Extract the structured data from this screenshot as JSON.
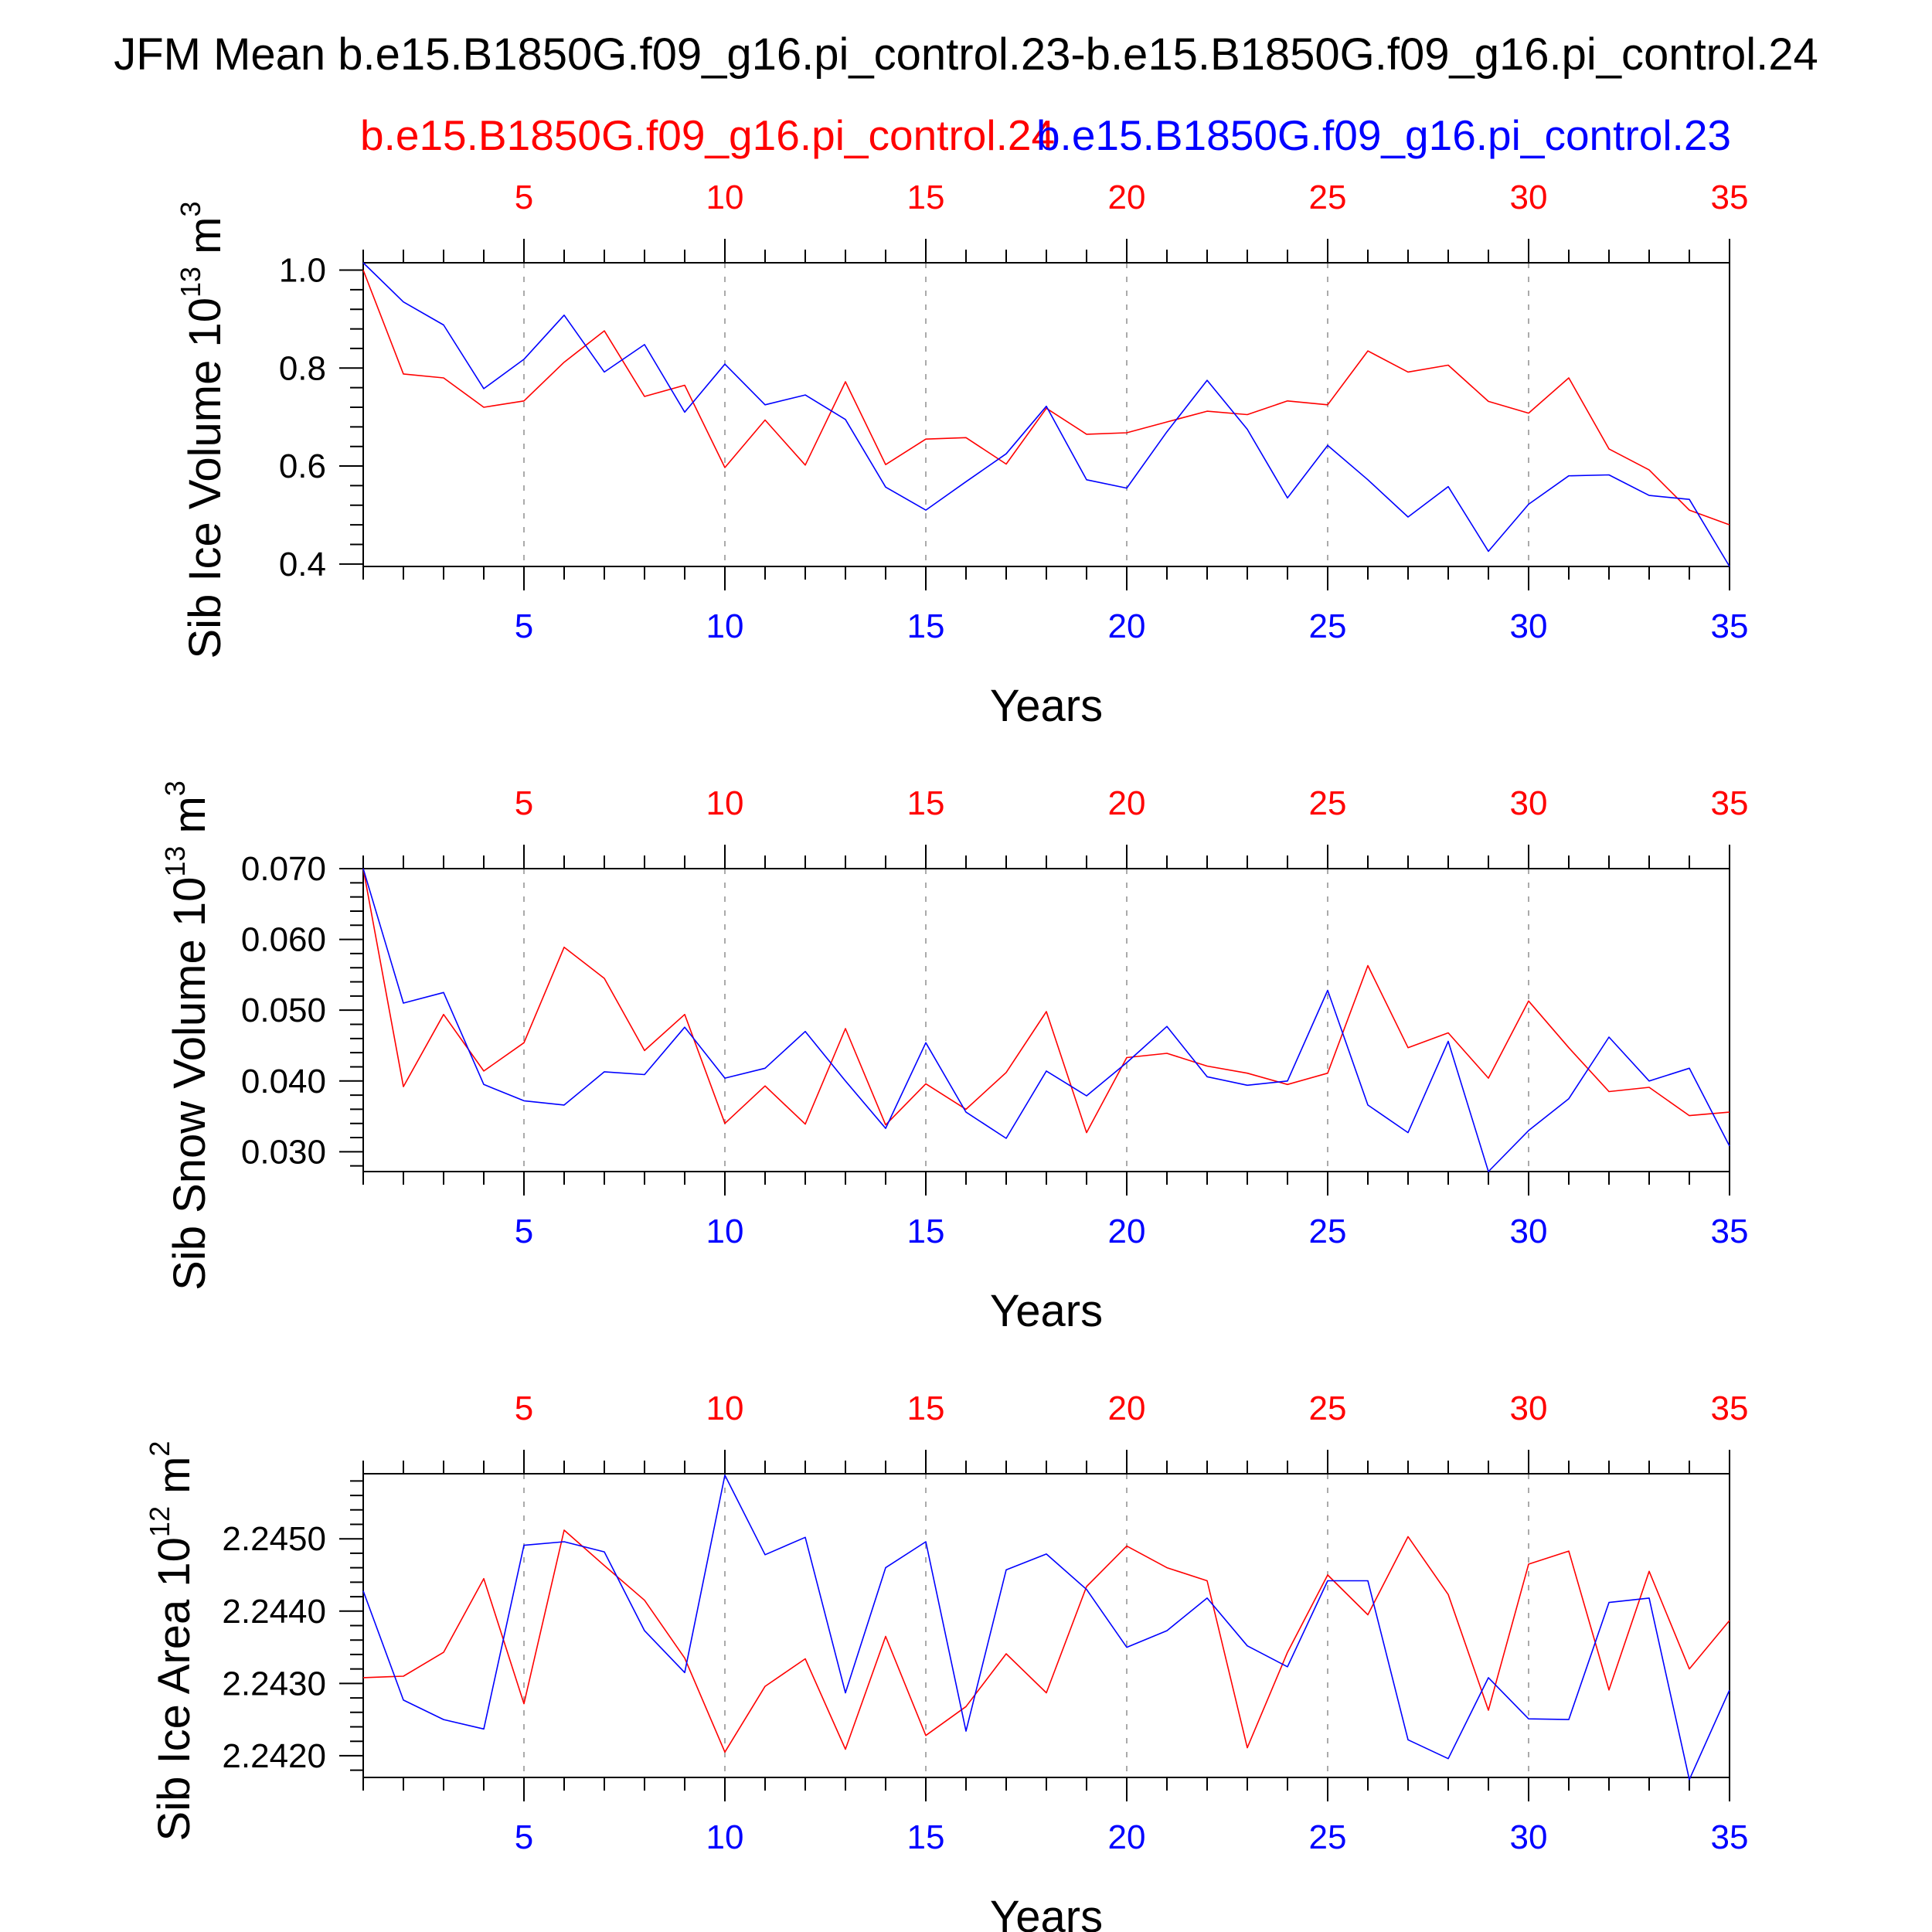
{
  "title": "JFM Mean b.e15.B1850G.f09_g16.pi_control.23-b.e15.B1850G.f09_g16.pi_control.24",
  "legend": [
    {
      "name": "b.e15.B1850G.f09_g16.pi_control.24",
      "color": "#ff0000"
    },
    {
      "name": "b.e15.B1850G.f09_g16.pi_control.23",
      "color": "#0000ff"
    }
  ],
  "colors": {
    "red": "#ff0000",
    "blue": "#0000ff",
    "axis": "#000000",
    "grid": "#aaaaaa"
  },
  "chart_data": [
    {
      "type": "line",
      "ylabel": "Sib Ice Volume 10",
      "ylabel_exp": "13",
      "ylabel_unit": " m",
      "ylabel_unit_exp": "3",
      "xlabel": "Years",
      "xlim": [
        1,
        35
      ],
      "ylim": [
        0.395,
        1.015
      ],
      "yticks": [
        "0.4",
        "0.6",
        "0.8",
        "1.0"
      ],
      "ytick_values": [
        0.4,
        0.6,
        0.8,
        1.0
      ],
      "xticks": [
        "5",
        "10",
        "15",
        "20",
        "25",
        "30",
        "35"
      ],
      "xtick_values": [
        5,
        10,
        15,
        20,
        25,
        30,
        35
      ],
      "x": [
        1,
        2,
        3,
        4,
        5,
        6,
        7,
        8,
        9,
        10,
        11,
        12,
        13,
        14,
        15,
        16,
        17,
        18,
        19,
        20,
        21,
        22,
        23,
        24,
        25,
        26,
        27,
        28,
        29,
        30,
        31,
        32,
        33,
        34,
        35
      ],
      "series": [
        {
          "name": "b.e15.B1850G.f09_g16.pi_control.24",
          "color": "red",
          "values": [
            1.0,
            0.788,
            0.78,
            0.72,
            0.733,
            0.812,
            0.876,
            0.742,
            0.765,
            0.597,
            0.694,
            0.602,
            0.772,
            0.603,
            0.655,
            0.658,
            0.604,
            0.718,
            0.665,
            0.668,
            0.69,
            0.712,
            0.705,
            0.733,
            0.725,
            0.835,
            0.792,
            0.806,
            0.732,
            0.708,
            0.78,
            0.635,
            0.592,
            0.51,
            0.48
          ]
        },
        {
          "name": "b.e15.B1850G.f09_g16.pi_control.23",
          "color": "blue",
          "values": [
            1.015,
            0.935,
            0.888,
            0.758,
            0.818,
            0.908,
            0.792,
            0.848,
            0.71,
            0.808,
            0.725,
            0.745,
            0.695,
            0.557,
            0.51,
            0.568,
            0.625,
            0.722,
            0.572,
            0.555,
            0.67,
            0.775,
            0.675,
            0.535,
            0.642,
            0.572,
            0.496,
            0.558,
            0.426,
            0.522,
            0.58,
            0.582,
            0.54,
            0.532,
            0.395
          ]
        }
      ]
    },
    {
      "type": "line",
      "ylabel": "Sib Snow Volume 10",
      "ylabel_exp": "13",
      "ylabel_unit": " m",
      "ylabel_unit_exp": "3",
      "xlabel": "Years",
      "xlim": [
        1,
        35
      ],
      "ylim": [
        0.0272,
        0.07
      ],
      "yticks": [
        "0.030",
        "0.040",
        "0.050",
        "0.060",
        "0.070"
      ],
      "ytick_values": [
        0.03,
        0.04,
        0.05,
        0.06,
        0.07
      ],
      "xticks": [
        "5",
        "10",
        "15",
        "20",
        "25",
        "30",
        "35"
      ],
      "xtick_values": [
        5,
        10,
        15,
        20,
        25,
        30,
        35
      ],
      "x": [
        1,
        2,
        3,
        4,
        5,
        6,
        7,
        8,
        9,
        10,
        11,
        12,
        13,
        14,
        15,
        16,
        17,
        18,
        19,
        20,
        21,
        22,
        23,
        24,
        25,
        26,
        27,
        28,
        29,
        30,
        31,
        32,
        33,
        34,
        35
      ],
      "series": [
        {
          "name": "b.e15.B1850G.f09_g16.pi_control.24",
          "color": "red",
          "values": [
            0.07,
            0.0392,
            0.0494,
            0.0414,
            0.0454,
            0.0589,
            0.0545,
            0.0443,
            0.0494,
            0.034,
            0.0393,
            0.0339,
            0.0474,
            0.0338,
            0.0396,
            0.036,
            0.0412,
            0.0498,
            0.0327,
            0.0433,
            0.0439,
            0.0421,
            0.0411,
            0.0395,
            0.0411,
            0.0563,
            0.0447,
            0.0468,
            0.0404,
            0.0513,
            0.0447,
            0.0385,
            0.0391,
            0.0351,
            0.0356
          ]
        },
        {
          "name": "b.e15.B1850G.f09_g16.pi_control.23",
          "color": "blue",
          "values": [
            0.07,
            0.051,
            0.0525,
            0.0395,
            0.0372,
            0.0366,
            0.0413,
            0.0409,
            0.0476,
            0.0404,
            0.0418,
            0.047,
            0.04,
            0.0333,
            0.0454,
            0.0356,
            0.0319,
            0.0414,
            0.0379,
            0.0426,
            0.0477,
            0.0406,
            0.0394,
            0.04,
            0.0528,
            0.0366,
            0.0327,
            0.0456,
            0.0272,
            0.033,
            0.0375,
            0.0462,
            0.04,
            0.0418,
            0.0308
          ]
        }
      ]
    },
    {
      "type": "line",
      "ylabel": "Sib Ice Area 10",
      "ylabel_exp": "12",
      "ylabel_unit": " m",
      "ylabel_unit_exp": "2",
      "xlabel": "Years",
      "xlim": [
        1,
        35
      ],
      "ylim": [
        2.2417,
        2.2459
      ],
      "yticks": [
        "2.2420",
        "2.2430",
        "2.2440",
        "2.2450"
      ],
      "ytick_values": [
        2.242,
        2.243,
        2.244,
        2.245
      ],
      "xticks": [
        "5",
        "10",
        "15",
        "20",
        "25",
        "30",
        "35"
      ],
      "xtick_values": [
        5,
        10,
        15,
        20,
        25,
        30,
        35
      ],
      "x": [
        1,
        2,
        3,
        4,
        5,
        6,
        7,
        8,
        9,
        10,
        11,
        12,
        13,
        14,
        15,
        16,
        17,
        18,
        19,
        20,
        21,
        22,
        23,
        24,
        25,
        26,
        27,
        28,
        29,
        30,
        31,
        32,
        33,
        34,
        35
      ],
      "series": [
        {
          "name": "b.e15.B1850G.f09_g16.pi_control.24",
          "color": "red",
          "values": [
            2.24308,
            2.2431,
            2.24343,
            2.24445,
            2.24272,
            2.24512,
            2.24463,
            2.24415,
            2.24335,
            2.24205,
            2.24296,
            2.24334,
            2.24209,
            2.24365,
            2.24228,
            2.24268,
            2.24341,
            2.24287,
            2.24434,
            2.2449,
            2.2446,
            2.24442,
            2.24211,
            2.24343,
            2.2445,
            2.24395,
            2.24503,
            2.24423,
            2.24263,
            2.24465,
            2.24483,
            2.24291,
            2.24455,
            2.2432,
            2.24387
          ]
        },
        {
          "name": "b.e15.B1850G.f09_g16.pi_control.23",
          "color": "blue",
          "values": [
            2.24428,
            2.24277,
            2.2425,
            2.24237,
            2.24491,
            2.24496,
            2.24482,
            2.24373,
            2.24315,
            2.24588,
            2.24478,
            2.24502,
            2.24287,
            2.2446,
            2.24496,
            2.24234,
            2.24457,
            2.24479,
            2.2443,
            2.2435,
            2.24373,
            2.24418,
            2.24352,
            2.24323,
            2.24442,
            2.24442,
            2.24222,
            2.24196,
            2.24308,
            2.24251,
            2.2425,
            2.24412,
            2.24418,
            2.24167,
            2.24291
          ]
        }
      ]
    }
  ]
}
